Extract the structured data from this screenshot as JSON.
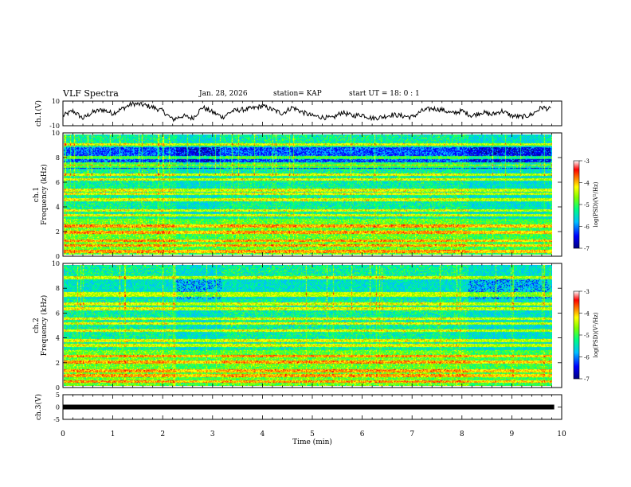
{
  "header": {
    "title": "VLF Spectra",
    "date": "Jan. 28, 2026",
    "station": "station= KAP",
    "start": "start  UT =   18: 0  : 1"
  },
  "colorbar": {
    "label": "log(PSD)(V²/Hz)",
    "colors": [
      "#00007f",
      "#0000ff",
      "#00bfff",
      "#00ff7f",
      "#7fff00",
      "#ffff00",
      "#ff7f00",
      "#ff0000",
      "#ffffff"
    ]
  },
  "chart_data": [
    {
      "type": "line",
      "name": "ch1-waveform",
      "ylabel": "ch.1(V)",
      "ylim": [
        -10,
        10
      ],
      "yticks": [
        "10",
        "-10"
      ],
      "xlim": [
        0,
        10
      ],
      "x": [
        0,
        0.2,
        0.4,
        0.6,
        0.8,
        1.0,
        1.2,
        1.4,
        1.6,
        1.8,
        2.0,
        2.2,
        2.4,
        2.6,
        2.8,
        3.0,
        3.2,
        3.4,
        3.6,
        3.8,
        4.0,
        4.2,
        4.4,
        4.6,
        4.8,
        5.0,
        5.2,
        5.4,
        5.6,
        5.8,
        6.0,
        6.2,
        6.4,
        6.6,
        6.8,
        7.0,
        7.2,
        7.4,
        7.6,
        7.8,
        8.0,
        8.2,
        8.4,
        8.6,
        8.8,
        9.0,
        9.2,
        9.4,
        9.6,
        9.8
      ],
      "values": [
        -2,
        2,
        -4,
        1,
        3,
        0,
        4,
        8,
        7,
        5,
        2,
        -5,
        -2,
        -4,
        5,
        1,
        -3,
        2,
        3,
        4,
        6,
        3,
        0,
        5,
        1,
        -2,
        -3,
        -4,
        1,
        -2,
        -1,
        -4,
        -3,
        -1,
        -2,
        -3,
        2,
        4,
        3,
        0,
        2,
        -2,
        1,
        -1,
        2,
        -2,
        -3,
        -1,
        5,
        3
      ]
    },
    {
      "type": "heatmap",
      "name": "ch1-spectrogram",
      "ylabel": "ch.1",
      "ylabel2": "Frequency (kHz)",
      "ylim": [
        0,
        10
      ],
      "yticks": [
        "0",
        "2",
        "4",
        "6",
        "8",
        "10"
      ],
      "xlim": [
        0,
        10
      ],
      "colorbar_ticks": [
        "-3",
        "-4",
        "-5",
        "-6",
        "-7"
      ],
      "bands_khz": [
        0.3,
        0.8,
        1.2,
        1.9,
        2.4,
        3.3,
        3.7,
        4.6,
        5.1,
        5.4,
        6.3,
        6.7,
        7.4,
        7.6,
        8.1,
        9.2
      ],
      "segments_min": [
        2.25,
        3.15,
        8.1
      ]
    },
    {
      "type": "heatmap",
      "name": "ch2-spectrogram",
      "ylabel": "ch.2",
      "ylabel2": "Frequency (kHz)",
      "ylim": [
        0,
        10
      ],
      "yticks": [
        "0",
        "2",
        "4",
        "6",
        "8",
        "10"
      ],
      "xlim": [
        0,
        10
      ],
      "colorbar_ticks": [
        "-3",
        "-4",
        "-5",
        "-6",
        "-7"
      ],
      "bands_khz": [
        0.4,
        0.9,
        1.3,
        2.0,
        2.5,
        3.4,
        3.8,
        4.6,
        5.2,
        5.6,
        6.4,
        6.8,
        7.5,
        7.7,
        9.0
      ],
      "segments_min": [
        2.25,
        3.15,
        8.1
      ]
    },
    {
      "type": "line",
      "name": "ch3-waveform",
      "ylabel": "ch.3(V)",
      "ylim": [
        -5,
        5
      ],
      "yticks": [
        "5",
        "0",
        "-5"
      ],
      "xlim": [
        0,
        10
      ],
      "x": [
        0,
        9.85
      ],
      "values": [
        0,
        0
      ]
    }
  ],
  "xaxis": {
    "label": "Time  (min)",
    "ticks": [
      "0",
      "1",
      "2",
      "3",
      "4",
      "5",
      "6",
      "7",
      "8",
      "9",
      "10"
    ]
  }
}
